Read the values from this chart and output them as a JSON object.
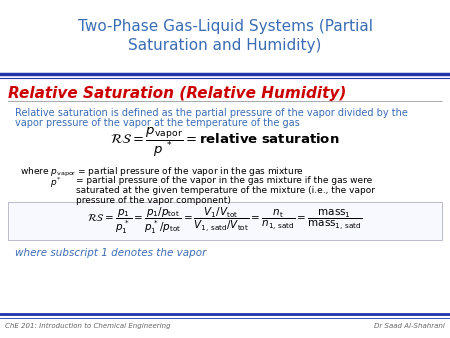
{
  "title": "Two-Phase Gas-Liquid Systems (Partial\nSaturation and Humidity)",
  "title_color": "#3B6DB5",
  "section_title": "Relative Saturation (Relative Humidity)",
  "section_title_color": "#CC0000",
  "def_text_line1": "Relative saturation is defined as the partial pressure of the vapor divided by the",
  "def_text_line2": "vapor pressure of the vapor at the temperature of the gas",
  "def_text_color": "#3B6DB5",
  "formula1": "$\\mathcal{RS} = \\dfrac{p_{\\mathrm{vapor}}}{p^{\\,*}} = \\mathbf{relative\\ saturation}$",
  "where1": "where $p_{\\mathrm{vapor}}$ = partial pressure of the vapor in the gas mixture",
  "where2a": "$p^{*}$",
  "where2b": "= partial pressure of the vapor in the gas mixture if the gas were",
  "where3": "saturated at the given temperature of the mixture (i.e., the vapor",
  "where4": "pressure of the vapor component)",
  "formula2": "$\\mathcal{RS} = \\dfrac{p_1}{p_1^{\\,*}} = \\dfrac{p_1/p_{\\mathrm{tot}}}{p_1^{\\,*}/p_{\\mathrm{tot}}} = \\dfrac{V_1/V_{\\mathrm{tot}}}{V_{1,\\,\\mathrm{satd}}/V_{\\mathrm{tot}}} = \\dfrac{n_{\\mathrm{t}}}{n_{1,\\,\\mathrm{satd}}} = \\dfrac{\\mathrm{mass}_1}{\\mathrm{mass}_{1,\\,\\mathrm{satd}}}$",
  "subscript_note": "where subscript 1 denotes the vapor",
  "subscript_note_color": "#3B6DB5",
  "footer_left": "ChE 201: Introduction to Chemical Engineering",
  "footer_right": "Dr Saad Al-Shahrani",
  "footer_color": "#666666",
  "line_color": "#2233AA",
  "bg_color": "#FFFFFF",
  "formula_color": "#000000",
  "where_color": "#000000"
}
